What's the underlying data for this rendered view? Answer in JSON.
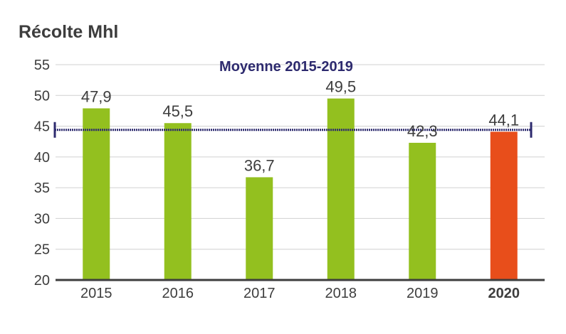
{
  "chart_data": {
    "type": "bar",
    "title": "Récolte Mhl",
    "categories": [
      "2015",
      "2016",
      "2017",
      "2018",
      "2019",
      "2020"
    ],
    "values": [
      47.9,
      45.5,
      36.7,
      49.5,
      42.3,
      44.1
    ],
    "value_labels": [
      "47,9",
      "45,5",
      "36,7",
      "49,5",
      "42,3",
      "44,1"
    ],
    "highlight_category": "2020",
    "ylim": [
      20,
      55
    ],
    "yticks": [
      20,
      25,
      30,
      35,
      40,
      45,
      50,
      55
    ],
    "grid": true,
    "reference_line": {
      "label": "Moyenne 2015-2019",
      "value": 44.4
    },
    "colors": {
      "bar": "#93c01f",
      "highlight_bar": "#e84e1b",
      "highlight_text": "#e84e1b",
      "average": "#2d2a6e",
      "grid": "#d0d0d0",
      "axis": "#3d3d3d",
      "text": "#3d3d3d"
    }
  }
}
